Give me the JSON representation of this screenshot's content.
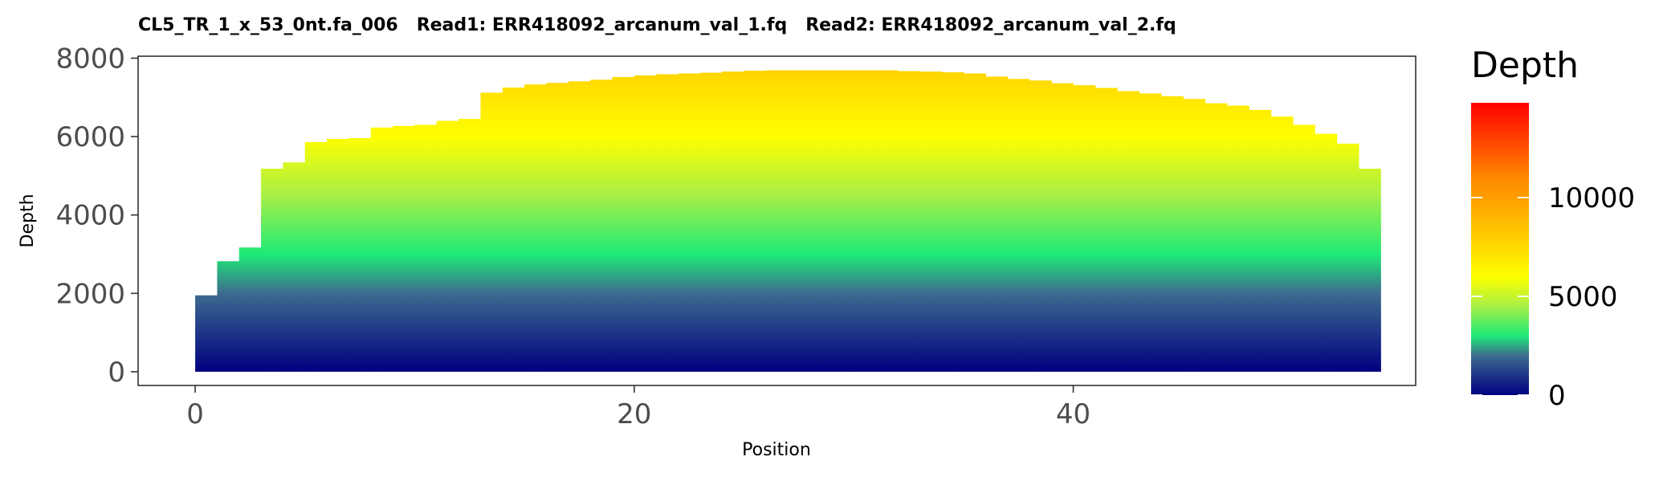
{
  "chart_data": {
    "type": "bar",
    "title": "CL5_TR_1_x_53_0nt.fa_006   Read1: ERR418092_arcanum_val_1.fq   Read2: ERR418092_arcanum_val_2.fq",
    "xlabel": "Position",
    "ylabel": "Depth",
    "xlim": [
      -2.6,
      55.6
    ],
    "ylim": [
      -350,
      8050
    ],
    "x_ticks": [
      0,
      20,
      40
    ],
    "y_ticks": [
      0,
      2000,
      4000,
      6000,
      8000
    ],
    "grid": false,
    "legend": {
      "title": "Depth",
      "position": "right",
      "scale_min": 0,
      "scale_max": 14800,
      "ticks": [
        0,
        5000,
        10000
      ],
      "colors": [
        {
          "value": 0,
          "color": "#000080"
        },
        {
          "value": 2000,
          "color": "#3d6b8f"
        },
        {
          "value": 3000,
          "color": "#1eea78"
        },
        {
          "value": 4500,
          "color": "#a8ef45"
        },
        {
          "value": 6000,
          "color": "#ffff00"
        },
        {
          "value": 8000,
          "color": "#ffcc00"
        },
        {
          "value": 11000,
          "color": "#ff8800"
        },
        {
          "value": 14800,
          "color": "#ff0000"
        }
      ]
    },
    "x": [
      0,
      1,
      2,
      3,
      4,
      5,
      6,
      7,
      8,
      9,
      10,
      11,
      12,
      13,
      14,
      15,
      16,
      17,
      18,
      19,
      20,
      21,
      22,
      23,
      24,
      25,
      26,
      27,
      28,
      29,
      30,
      31,
      32,
      33,
      34,
      35,
      36,
      37,
      38,
      39,
      40,
      41,
      42,
      43,
      44,
      45,
      46,
      47,
      48,
      49,
      50,
      51,
      52,
      53
    ],
    "values": [
      1950,
      2820,
      3170,
      5180,
      5340,
      5860,
      5940,
      5960,
      6230,
      6270,
      6300,
      6400,
      6450,
      7120,
      7250,
      7330,
      7370,
      7410,
      7450,
      7520,
      7560,
      7590,
      7610,
      7630,
      7660,
      7680,
      7690,
      7690,
      7690,
      7690,
      7690,
      7690,
      7670,
      7660,
      7640,
      7610,
      7530,
      7470,
      7430,
      7360,
      7310,
      7240,
      7160,
      7100,
      7030,
      6960,
      6850,
      6790,
      6680,
      6510,
      6300,
      6070,
      5820,
      5180
    ]
  }
}
